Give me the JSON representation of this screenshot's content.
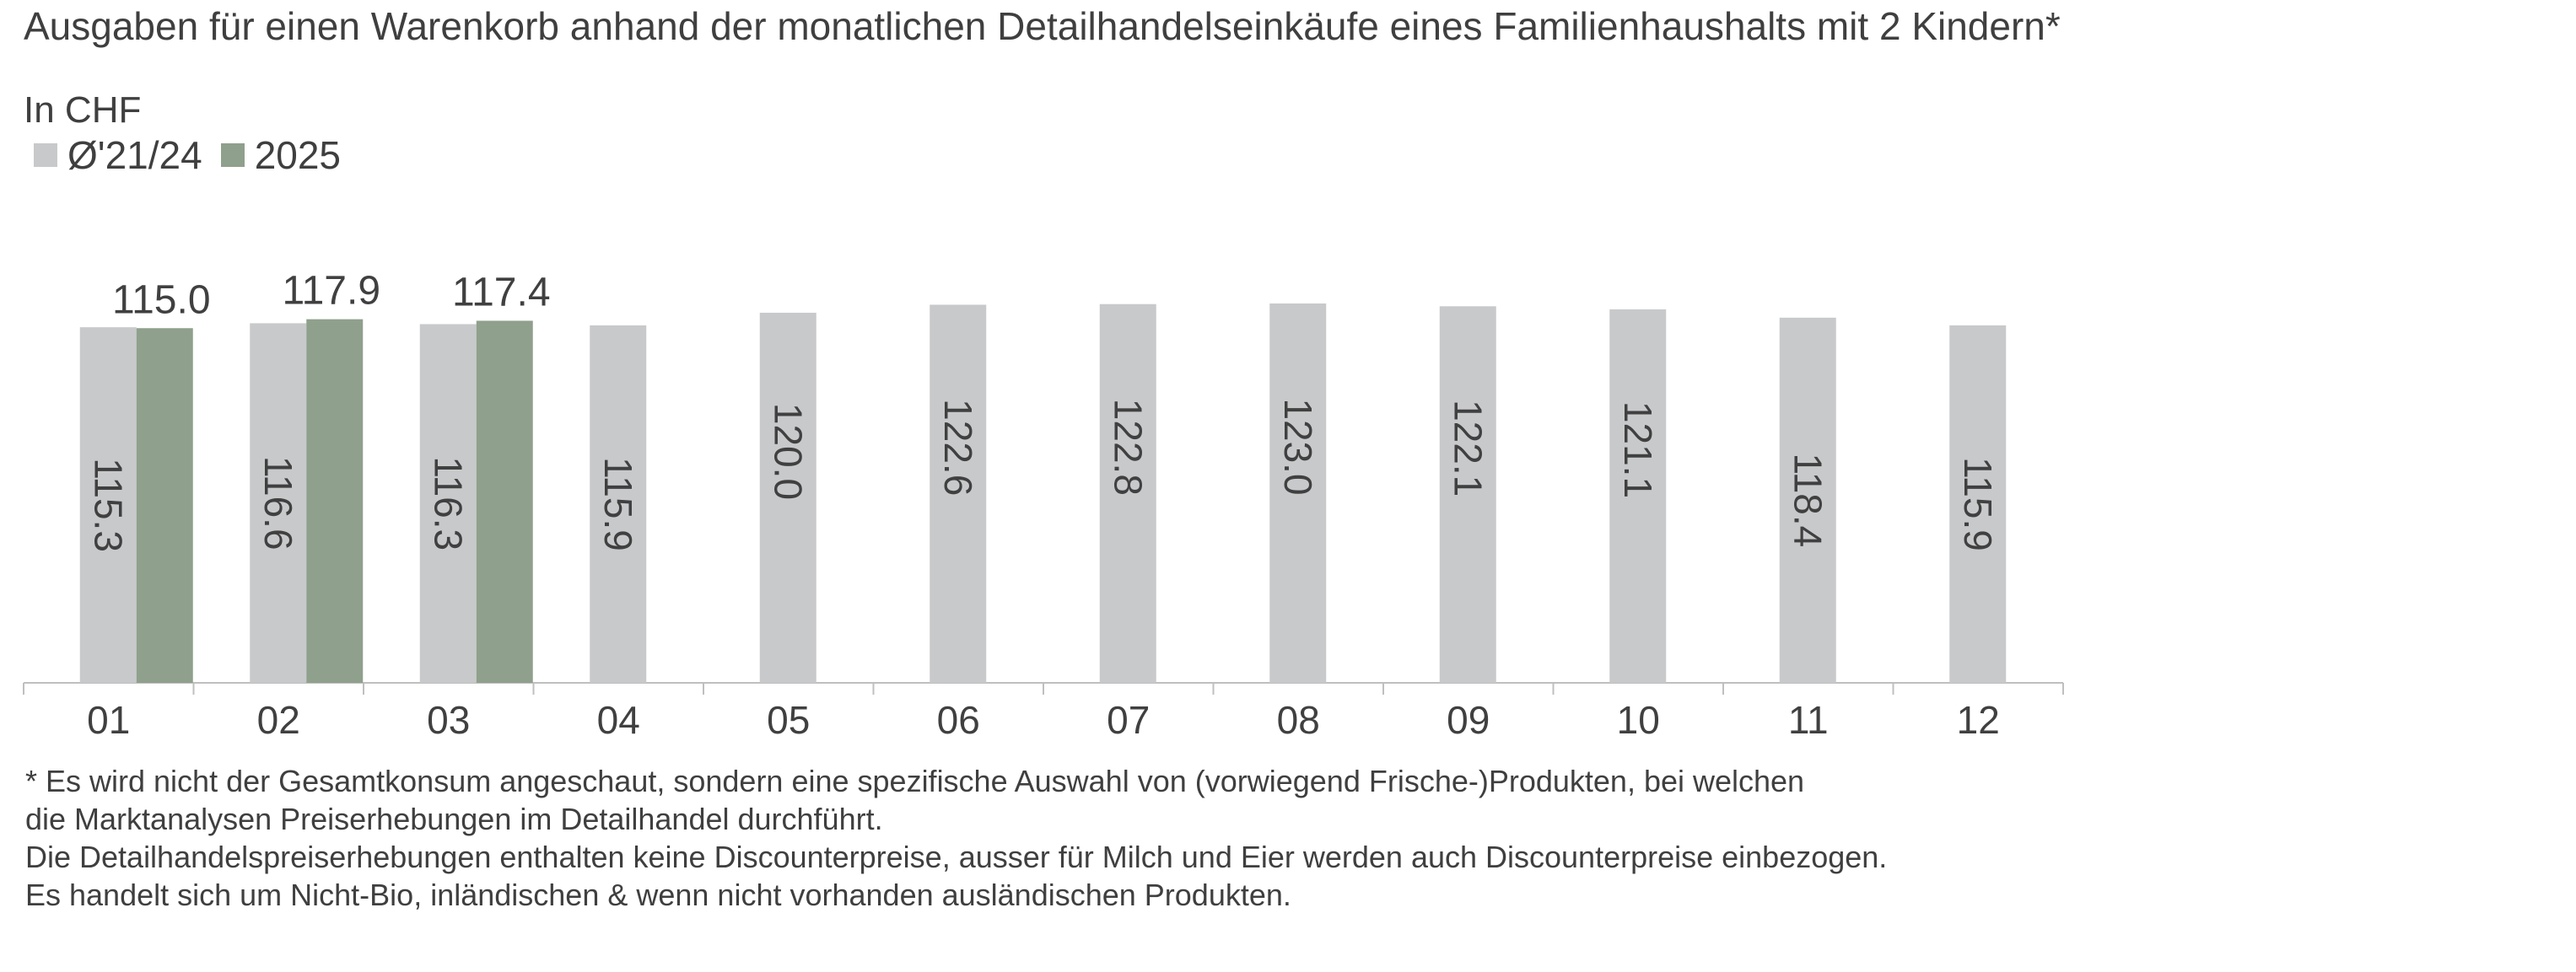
{
  "chart_data": {
    "type": "bar",
    "title": "Ausgaben für einen Warenkorb anhand der monatlichen Detailhandelseinkäufe eines Familienhaushalts mit 2 Kindern*",
    "unit_label": "In CHF",
    "categories": [
      "01",
      "02",
      "03",
      "04",
      "05",
      "06",
      "07",
      "08",
      "09",
      "10",
      "11",
      "12"
    ],
    "series": [
      {
        "name": "Ø'21/24",
        "color": "#c8c9cb",
        "values": [
          115.3,
          116.6,
          116.3,
          115.9,
          120.0,
          122.6,
          122.8,
          123.0,
          122.1,
          121.1,
          118.4,
          115.9
        ],
        "labels": [
          "115.3",
          "116.6",
          "116.3",
          "115.9",
          "120.0",
          "122.6",
          "122.8",
          "123.0",
          "122.1",
          "121.1",
          "118.4",
          "115.9"
        ]
      },
      {
        "name": "2025",
        "color": "#8fa08c",
        "values": [
          115.0,
          117.9,
          117.4,
          null,
          null,
          null,
          null,
          null,
          null,
          null,
          null,
          null
        ],
        "labels": [
          "115.0",
          "117.9",
          "117.4",
          "",
          "",
          "",
          "",
          "",
          "",
          "",
          "",
          ""
        ]
      }
    ],
    "grid": false,
    "legend_position": "top-left"
  },
  "footnote": [
    "* Es wird nicht der Gesamtkonsum angeschaut, sondern eine spezifische Auswahl von (vorwiegend Frische-)Produkten, bei welchen",
    "die Marktanalysen Preiserhebungen im Detailhandel durchführt.",
    "Die Detailhandelspreiserhebungen enthalten keine Discounterpreise, ausser für Milch und Eier werden auch Discounterpreise einbezogen.",
    "Es handelt sich um Nicht-Bio, inländischen & wenn nicht vorhanden ausländischen Produkten."
  ]
}
